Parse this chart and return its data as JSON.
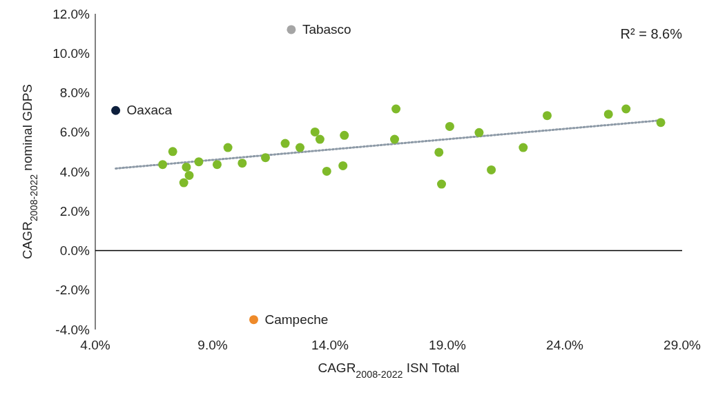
{
  "chart_data": {
    "type": "scatter",
    "xlabel": "CAGR$_{2008-2022}$ ISN Total",
    "ylabel": "CAGR$_{2008-2022}$ nominal GDPS",
    "annotations": [
      "R² = 8.6%"
    ],
    "xlim": [
      4,
      29
    ],
    "xticks": [
      {
        "value": 4,
        "label": "4.0%"
      },
      {
        "value": 9,
        "label": "9.0%"
      },
      {
        "value": 14,
        "label": "14.0%"
      },
      {
        "value": 19,
        "label": "19.0%"
      },
      {
        "value": 24,
        "label": "24.0%"
      },
      {
        "value": 29,
        "label": "29.0%"
      }
    ],
    "ylim": [
      -4,
      12
    ],
    "yticks": [
      {
        "value": -4,
        "label": "-4.0%"
      },
      {
        "value": -2,
        "label": "-2.0%"
      },
      {
        "value": 0,
        "label": "0.0%"
      },
      {
        "value": 2,
        "label": "2.0%"
      },
      {
        "value": 4,
        "label": "4.0%"
      },
      {
        "value": 6,
        "label": "6.0%"
      },
      {
        "value": 8,
        "label": "8.0%"
      },
      {
        "value": 10,
        "label": "10.0%"
      },
      {
        "value": 12,
        "label": "12.0%"
      }
    ],
    "grid": false,
    "legend": false,
    "marker": "circle",
    "ref_lines": [
      {
        "axis": "y",
        "value": 0,
        "color": "#000000"
      }
    ],
    "series": [
      {
        "color": "#7fba2a",
        "x": [
          6.87,
          7.3,
          7.77,
          7.88,
          8.0,
          8.41,
          9.19,
          9.65,
          10.26,
          11.25,
          12.09,
          12.72,
          13.36,
          13.57,
          13.86,
          14.55,
          14.61,
          16.75,
          16.81,
          18.64,
          18.75,
          19.1,
          20.35,
          20.87,
          22.23,
          23.25,
          25.86,
          26.61,
          28.09
        ],
        "values": [
          4.36,
          5.02,
          3.44,
          4.23,
          3.81,
          4.5,
          4.36,
          5.22,
          4.43,
          4.71,
          5.43,
          5.22,
          6.01,
          5.64,
          4.02,
          4.3,
          5.84,
          5.64,
          7.18,
          4.98,
          3.37,
          6.29,
          5.98,
          4.09,
          5.22,
          6.84,
          6.91,
          7.18,
          6.49
        ]
      },
      {
        "name": "Tabasco",
        "color": "#a5a5a5",
        "x": [
          12.35
        ],
        "values": [
          11.2
        ]
      },
      {
        "name": "Oaxaca",
        "color": "#0d1f3c",
        "x": [
          4.87
        ],
        "values": [
          7.1
        ]
      },
      {
        "name": "Campeche",
        "color": "#ee8a2a",
        "x": [
          10.75
        ],
        "values": [
          -3.5
        ]
      },
      {
        "type": "line",
        "color": "#8c99a6",
        "marker": "none",
        "line_style": "dotted",
        "x": [
          4.87,
          28.09
        ],
        "values": [
          4.16,
          6.6
        ]
      }
    ]
  }
}
